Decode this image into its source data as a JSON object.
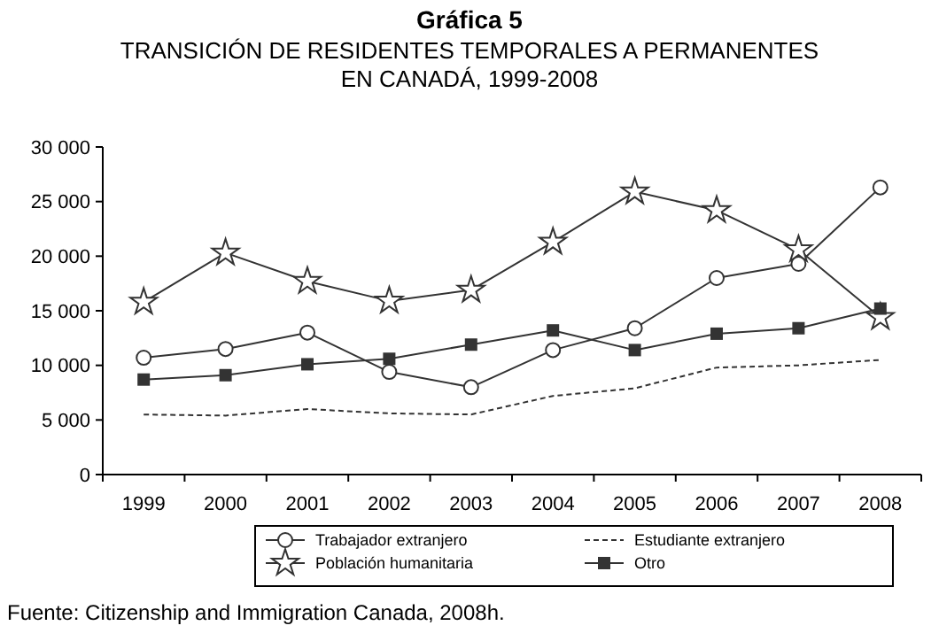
{
  "chart_data": {
    "type": "line",
    "title": "Gráfica 5",
    "subtitle": "TRANSICIÓN DE RESIDENTES TEMPORALES A PERMANENTES\nEN CANADÁ, 1999-2008",
    "categories": [
      "1999",
      "2000",
      "2001",
      "2002",
      "2003",
      "2004",
      "2005",
      "2006",
      "2007",
      "2008"
    ],
    "ylim": [
      0,
      30000
    ],
    "yticks": [
      {
        "value": 0,
        "label": "0"
      },
      {
        "value": 5000,
        "label": "5 000"
      },
      {
        "value": 10000,
        "label": "10 000"
      },
      {
        "value": 15000,
        "label": "15 000"
      },
      {
        "value": 20000,
        "label": "20 000"
      },
      {
        "value": 25000,
        "label": "25 000"
      },
      {
        "value": 30000,
        "label": "30 000"
      }
    ],
    "series": [
      {
        "name": "Trabajador extranjero",
        "color": "#333333",
        "marker": "circle",
        "line_style": "solid",
        "values": [
          10700,
          11500,
          13000,
          9400,
          8000,
          11400,
          13400,
          18000,
          19300,
          26300
        ]
      },
      {
        "name": "Estudiante extranjero",
        "color": "#333333",
        "marker": "none",
        "line_style": "dashed",
        "values": [
          5500,
          5400,
          6000,
          5600,
          5500,
          7200,
          7900,
          9800,
          10000,
          10500
        ]
      },
      {
        "name": "Población humanitaria",
        "color": "#333333",
        "marker": "star",
        "line_style": "solid",
        "values": [
          15800,
          20300,
          17700,
          15900,
          16900,
          21300,
          25900,
          24200,
          20600,
          14400
        ]
      },
      {
        "name": "Otro",
        "color": "#333333",
        "marker": "square",
        "line_style": "solid",
        "values": [
          8700,
          9100,
          10100,
          10600,
          11900,
          13200,
          11400,
          12900,
          13400,
          15200
        ]
      }
    ],
    "grid": false,
    "legend": "bottom",
    "annotations": [
      "Fuente: Citizenship and Immigration Canada, 2008h."
    ]
  }
}
